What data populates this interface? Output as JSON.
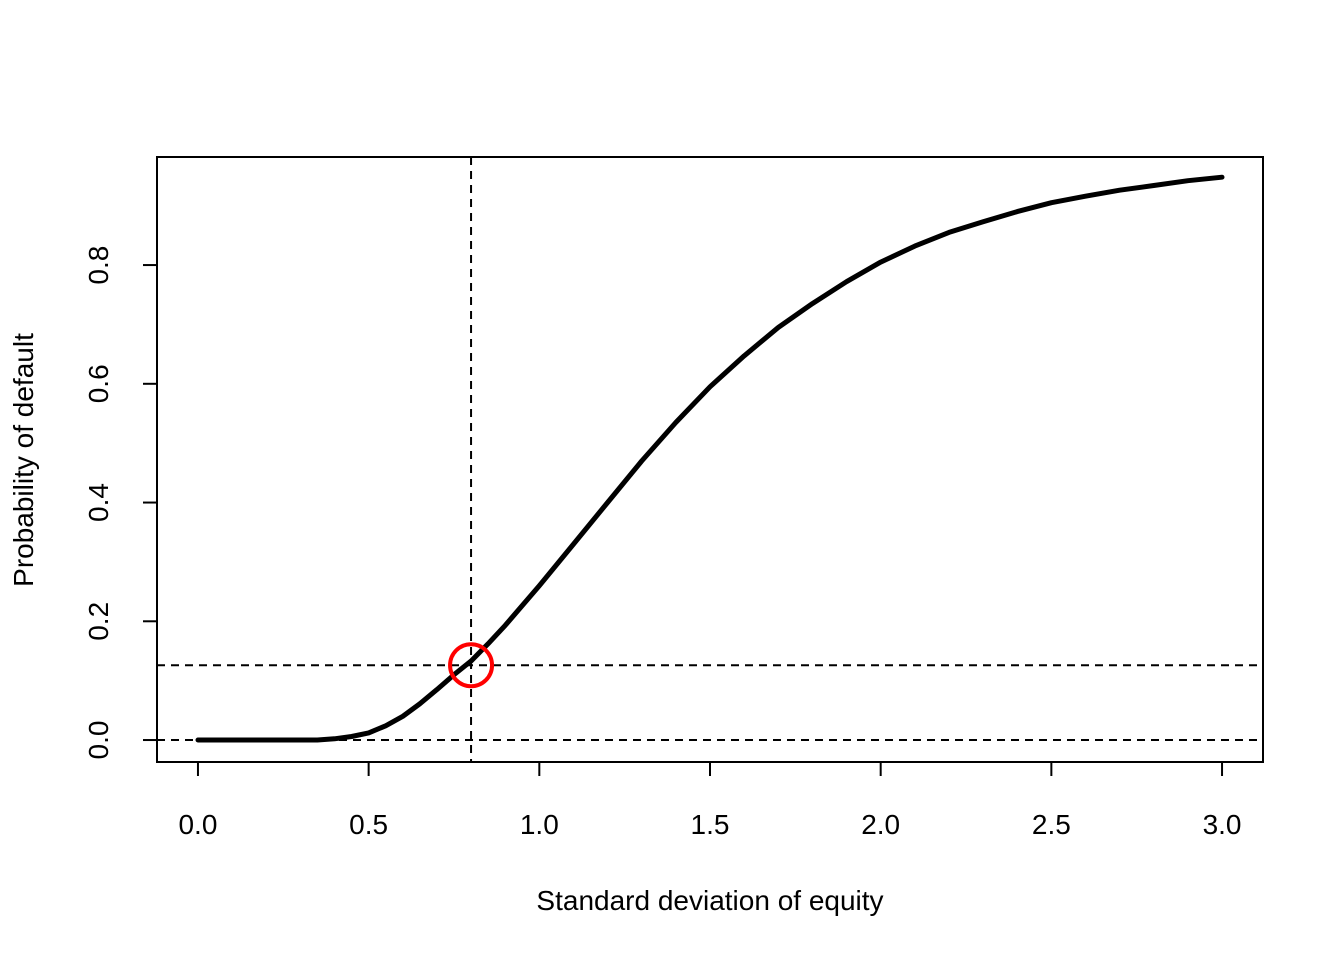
{
  "chart_data": {
    "type": "line",
    "title": "",
    "xlabel": "Standard deviation of equity",
    "ylabel": "Probability of default",
    "xlim": [
      -0.12,
      3.12
    ],
    "ylim": [
      -0.037,
      0.982
    ],
    "x_ticks": [
      {
        "value": 0.0,
        "label": "0.0"
      },
      {
        "value": 0.5,
        "label": "0.5"
      },
      {
        "value": 1.0,
        "label": "1.0"
      },
      {
        "value": 1.5,
        "label": "1.5"
      },
      {
        "value": 2.0,
        "label": "2.0"
      },
      {
        "value": 2.5,
        "label": "2.5"
      },
      {
        "value": 3.0,
        "label": "3.0"
      }
    ],
    "y_ticks": [
      {
        "value": 0.0,
        "label": "0.0"
      },
      {
        "value": 0.2,
        "label": "0.2"
      },
      {
        "value": 0.4,
        "label": "0.4"
      },
      {
        "value": 0.6,
        "label": "0.6"
      },
      {
        "value": 0.8,
        "label": "0.8"
      }
    ],
    "grid": false,
    "series": [
      {
        "color": "#000000",
        "x": [
          0.0,
          0.1,
          0.2,
          0.3,
          0.35,
          0.4,
          0.45,
          0.5,
          0.55,
          0.6,
          0.65,
          0.7,
          0.75,
          0.8,
          0.85,
          0.9,
          1.0,
          1.1,
          1.2,
          1.3,
          1.4,
          1.5,
          1.6,
          1.7,
          1.8,
          1.9,
          2.0,
          2.1,
          2.2,
          2.3,
          2.4,
          2.5,
          2.6,
          2.7,
          2.8,
          2.9,
          3.0
        ],
        "y": [
          0.0,
          0.0,
          0.0,
          0.0,
          0.0,
          0.002,
          0.006,
          0.012,
          0.024,
          0.04,
          0.061,
          0.085,
          0.11,
          0.133,
          0.162,
          0.193,
          0.26,
          0.33,
          0.4,
          0.47,
          0.535,
          0.595,
          0.647,
          0.695,
          0.735,
          0.772,
          0.805,
          0.832,
          0.855,
          0.873,
          0.89,
          0.905,
          0.916,
          0.926,
          0.934,
          0.942,
          0.948
        ]
      }
    ],
    "reference_lines": [
      {
        "orientation": "vertical",
        "value": 0.8,
        "style": "dashed",
        "color": "#000000"
      },
      {
        "orientation": "horizontal",
        "value": 0.126,
        "style": "dashed",
        "color": "#000000"
      },
      {
        "orientation": "horizontal",
        "value": 0.0,
        "style": "dashed",
        "color": "#000000"
      }
    ],
    "marker": {
      "x": 0.8,
      "y": 0.126,
      "shape": "open-circle",
      "color": "#ff0000"
    }
  }
}
